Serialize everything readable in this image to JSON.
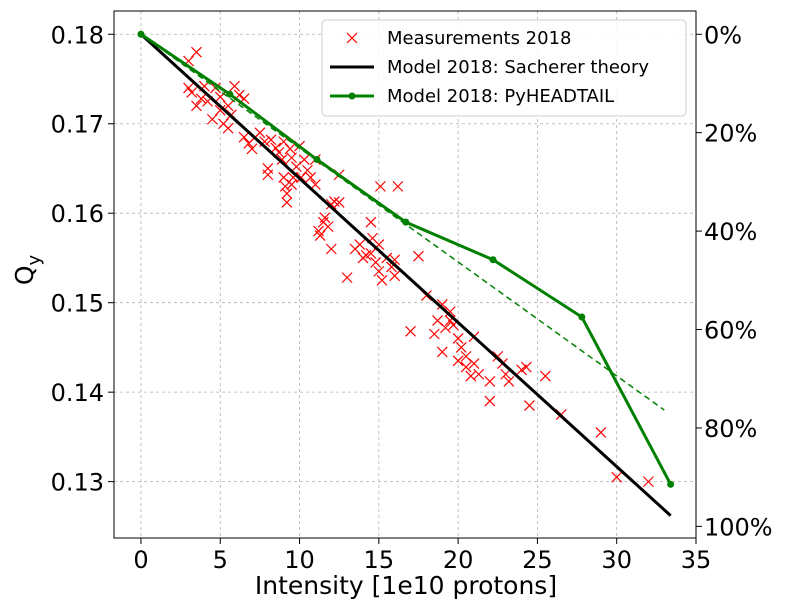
{
  "chart_data": {
    "type": "scatter",
    "xlabel": "Intensity [1e10 protons]",
    "ylabel": "Q",
    "ylabel_sub": "y",
    "xlim": [
      -1.7,
      35
    ],
    "ylim": [
      0.1237,
      0.1826
    ],
    "x_ticks": [
      0,
      5,
      10,
      15,
      20,
      25,
      30,
      35
    ],
    "y_ticks": [
      0.13,
      0.14,
      0.15,
      0.16,
      0.17,
      0.18
    ],
    "y_tick_labels": [
      "0.13",
      "0.14",
      "0.15",
      "0.16",
      "0.17",
      "0.18"
    ],
    "right_axis": {
      "labels": [
        "0%",
        "20%",
        "40%",
        "60%",
        "80%",
        "100%"
      ],
      "values": [
        0.18,
        0.169,
        0.158,
        0.147,
        0.136,
        0.125
      ]
    },
    "grid": true,
    "legend_position": "top-right",
    "series": [
      {
        "name": "Measurements 2018",
        "kind": "scatter",
        "marker": "x",
        "color": "#ff0000",
        "points": [
          [
            3.0,
            0.177
          ],
          [
            3.5,
            0.178
          ],
          [
            3.0,
            0.174
          ],
          [
            3.2,
            0.1735
          ],
          [
            3.5,
            0.172
          ],
          [
            3.8,
            0.1728
          ],
          [
            4.0,
            0.1742
          ],
          [
            4.2,
            0.1725
          ],
          [
            4.5,
            0.1705
          ],
          [
            4.7,
            0.174
          ],
          [
            5.0,
            0.173
          ],
          [
            5.0,
            0.1715
          ],
          [
            5.2,
            0.17
          ],
          [
            5.5,
            0.1695
          ],
          [
            5.5,
            0.172
          ],
          [
            5.7,
            0.171
          ],
          [
            5.9,
            0.1742
          ],
          [
            6.2,
            0.1732
          ],
          [
            6.5,
            0.1728
          ],
          [
            6.5,
            0.1685
          ],
          [
            6.8,
            0.1678
          ],
          [
            7.0,
            0.1672
          ],
          [
            7.2,
            0.1685
          ],
          [
            7.5,
            0.169
          ],
          [
            7.8,
            0.168
          ],
          [
            8.0,
            0.165
          ],
          [
            8.0,
            0.1643
          ],
          [
            8.2,
            0.1682
          ],
          [
            8.5,
            0.1673
          ],
          [
            8.7,
            0.1668
          ],
          [
            8.9,
            0.166
          ],
          [
            9.0,
            0.168
          ],
          [
            9.0,
            0.164
          ],
          [
            9.1,
            0.163
          ],
          [
            9.2,
            0.1622
          ],
          [
            9.2,
            0.1612
          ],
          [
            9.4,
            0.1672
          ],
          [
            9.5,
            0.1662
          ],
          [
            9.5,
            0.1632
          ],
          [
            9.6,
            0.164
          ],
          [
            9.8,
            0.1652
          ],
          [
            10.0,
            0.1675
          ],
          [
            10.1,
            0.164
          ],
          [
            10.3,
            0.166
          ],
          [
            10.5,
            0.1648
          ],
          [
            10.7,
            0.164
          ],
          [
            11.0,
            0.1632
          ],
          [
            11.0,
            0.166
          ],
          [
            11.2,
            0.158
          ],
          [
            11.3,
            0.1575
          ],
          [
            11.5,
            0.159
          ],
          [
            11.6,
            0.1595
          ],
          [
            11.8,
            0.1585
          ],
          [
            12.0,
            0.161
          ],
          [
            12.0,
            0.156
          ],
          [
            12.2,
            0.1613
          ],
          [
            12.5,
            0.1643
          ],
          [
            12.5,
            0.1612
          ],
          [
            13.0,
            0.1528
          ],
          [
            13.5,
            0.156
          ],
          [
            13.8,
            0.1565
          ],
          [
            14.0,
            0.155
          ],
          [
            14.2,
            0.1553
          ],
          [
            14.5,
            0.1555
          ],
          [
            14.5,
            0.159
          ],
          [
            14.6,
            0.1572
          ],
          [
            14.8,
            0.1545
          ],
          [
            15.0,
            0.1535
          ],
          [
            15.0,
            0.1565
          ],
          [
            15.1,
            0.163
          ],
          [
            15.2,
            0.1525
          ],
          [
            15.5,
            0.155
          ],
          [
            15.8,
            0.154
          ],
          [
            16.0,
            0.153
          ],
          [
            16.0,
            0.1548
          ],
          [
            16.2,
            0.163
          ],
          [
            17.0,
            0.1468
          ],
          [
            17.5,
            0.1552
          ],
          [
            18.0,
            0.1508
          ],
          [
            18.5,
            0.1465
          ],
          [
            18.7,
            0.148
          ],
          [
            19.0,
            0.1445
          ],
          [
            19.0,
            0.1498
          ],
          [
            19.2,
            0.1472
          ],
          [
            19.5,
            0.148
          ],
          [
            19.5,
            0.149
          ],
          [
            19.7,
            0.1475
          ],
          [
            20.0,
            0.146
          ],
          [
            20.0,
            0.1435
          ],
          [
            20.2,
            0.145
          ],
          [
            20.5,
            0.144
          ],
          [
            20.5,
            0.1428
          ],
          [
            20.8,
            0.1418
          ],
          [
            21.0,
            0.1432
          ],
          [
            21.0,
            0.1462
          ],
          [
            21.3,
            0.142
          ],
          [
            22.0,
            0.1412
          ],
          [
            22.0,
            0.139
          ],
          [
            22.5,
            0.144
          ],
          [
            22.8,
            0.1432
          ],
          [
            23.0,
            0.142
          ],
          [
            23.2,
            0.1412
          ],
          [
            24.0,
            0.1425
          ],
          [
            24.3,
            0.1428
          ],
          [
            24.5,
            0.1385
          ],
          [
            25.5,
            0.1418
          ],
          [
            26.5,
            0.1375
          ],
          [
            29.0,
            0.1355
          ],
          [
            30.0,
            0.1305
          ],
          [
            32.0,
            0.13
          ]
        ]
      },
      {
        "name": "Model 2018: Sacherer theory",
        "kind": "line",
        "color": "#000000",
        "x": [
          0,
          33.4
        ],
        "y": [
          0.18,
          0.1262
        ]
      },
      {
        "name": "Model 2018: PyHEADTAIL",
        "kind": "line-marker",
        "color": "#008000",
        "x": [
          0,
          5.6,
          11.1,
          16.7,
          22.2,
          27.8,
          33.4
        ],
        "y": [
          0.18,
          0.1733,
          0.166,
          0.159,
          0.1548,
          0.1484,
          0.1297
        ]
      },
      {
        "name": "",
        "kind": "dashed",
        "color": "#008000",
        "x": [
          0,
          33.0
        ],
        "y": [
          0.18,
          0.138
        ]
      }
    ]
  }
}
